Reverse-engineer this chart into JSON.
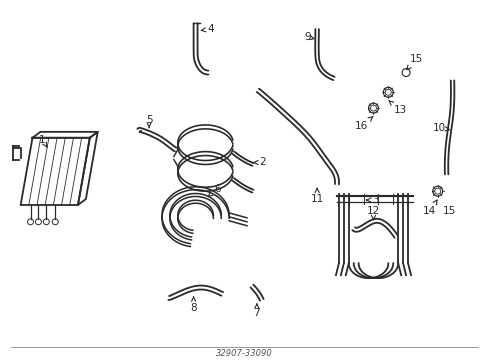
{
  "bg": "#ffffff",
  "lc": "#2a2a2a",
  "lw": 1.3,
  "fs": 7.5
}
